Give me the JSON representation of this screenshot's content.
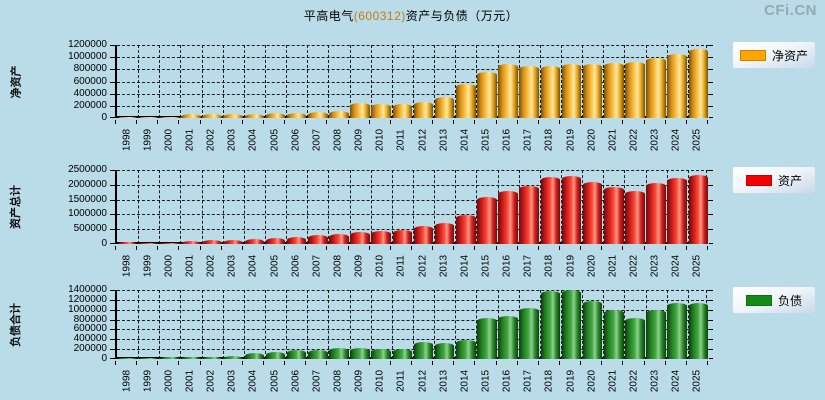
{
  "page": {
    "title_prefix": "平高电气",
    "title_code": "(600312)",
    "title_suffix": "资产与负债（万元）",
    "watermark": "CFi.CN",
    "background_color": "#BADCE8",
    "code_color": "#C87818"
  },
  "chart_data": [
    {
      "type": "bar",
      "ylabel": "净资产",
      "legend": "净资产",
      "legend_position": "right",
      "bar_color": "#FFA500",
      "grid": true,
      "ylim": [
        0,
        1200000
      ],
      "ytick_step": 200000,
      "yticks": [
        0,
        200000,
        400000,
        600000,
        800000,
        1000000,
        1200000
      ],
      "categories": [
        1998,
        1999,
        2000,
        2001,
        2002,
        2003,
        2004,
        2005,
        2006,
        2007,
        2008,
        2009,
        2010,
        2011,
        2012,
        2013,
        2014,
        2015,
        2016,
        2017,
        2018,
        2019,
        2020,
        2021,
        2022,
        2023,
        2024,
        2025
      ],
      "values": [
        15000,
        16000,
        10000,
        67000,
        62000,
        58000,
        62000,
        87000,
        78000,
        100000,
        115000,
        245000,
        230000,
        228000,
        265000,
        340000,
        560000,
        755000,
        895000,
        855000,
        860000,
        885000,
        895000,
        898000,
        920000,
        990000,
        1050000,
        1130000
      ]
    },
    {
      "type": "bar",
      "ylabel": "资产总计",
      "legend": "资产",
      "legend_position": "right",
      "bar_color": "#F50000",
      "grid": true,
      "ylim": [
        0,
        2500000
      ],
      "ytick_step": 500000,
      "yticks": [
        0,
        500000,
        1000000,
        1500000,
        2000000,
        2500000
      ],
      "categories": [
        1998,
        1999,
        2000,
        2001,
        2002,
        2003,
        2004,
        2005,
        2006,
        2007,
        2008,
        2009,
        2010,
        2011,
        2012,
        2013,
        2014,
        2015,
        2016,
        2017,
        2018,
        2019,
        2020,
        2021,
        2022,
        2023,
        2024,
        2025
      ],
      "values": [
        55000,
        45000,
        45000,
        115000,
        140000,
        150000,
        165000,
        200000,
        230000,
        290000,
        325000,
        420000,
        440000,
        470000,
        600000,
        700000,
        965000,
        1580000,
        1780000,
        1960000,
        2270000,
        2300000,
        2100000,
        1920000,
        1790000,
        2050000,
        2220000,
        2340000
      ]
    },
    {
      "type": "bar",
      "ylabel": "负债合计",
      "legend": "负债",
      "legend_position": "right",
      "bar_color": "#168A16",
      "grid": true,
      "ylim": [
        0,
        1400000
      ],
      "ytick_step": 200000,
      "yticks": [
        0,
        200000,
        400000,
        600000,
        800000,
        1000000,
        1200000,
        1400000
      ],
      "categories": [
        1998,
        1999,
        2000,
        2001,
        2002,
        2003,
        2004,
        2005,
        2006,
        2007,
        2008,
        2009,
        2010,
        2011,
        2012,
        2013,
        2014,
        2015,
        2016,
        2017,
        2018,
        2019,
        2020,
        2021,
        2022,
        2023,
        2024,
        2025
      ],
      "values": [
        27000,
        20000,
        41000,
        34000,
        41000,
        55000,
        117000,
        138000,
        179000,
        186000,
        228000,
        228000,
        193000,
        207000,
        345000,
        330000,
        380000,
        830000,
        875000,
        1035000,
        1380000,
        1390000,
        1185000,
        1000000,
        840000,
        995000,
        1140000,
        1140000
      ]
    }
  ]
}
